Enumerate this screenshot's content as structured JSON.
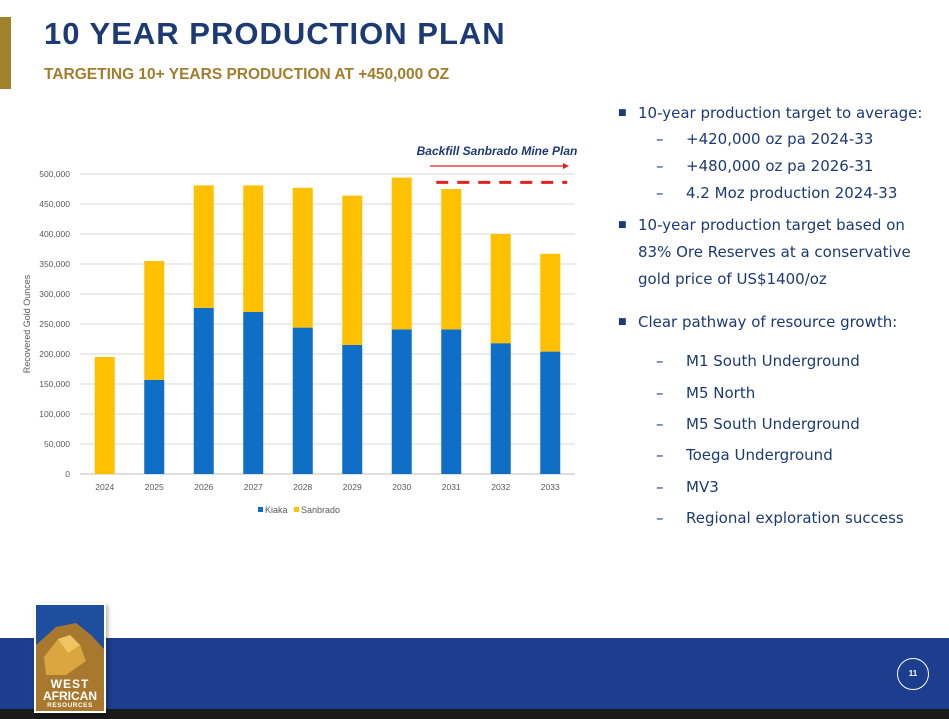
{
  "header": {
    "title": "10 YEAR PRODUCTION PLAN",
    "subtitle": "TARGETING 10+ YEARS PRODUCTION AT +450,000 OZ"
  },
  "colors": {
    "title": "#1c3a73",
    "subtitle": "#a37d2c",
    "accent_bar": "#a0822b",
    "kiaka": "#0f6fc6",
    "sanbrado": "#ffc000",
    "backfill_line": "#e32020",
    "footer": "#1d3d8e"
  },
  "chart_data": {
    "type": "bar",
    "stacked": true,
    "categories": [
      "2024",
      "2025",
      "2026",
      "2027",
      "2028",
      "2029",
      "2030",
      "2031",
      "2032",
      "2033"
    ],
    "series": [
      {
        "name": "Kiaka",
        "values": [
          0,
          157000,
          277000,
          270000,
          244000,
          215000,
          241000,
          241000,
          218000,
          204000
        ]
      },
      {
        "name": "Sanbrado",
        "values": [
          195000,
          198000,
          204000,
          211000,
          233000,
          249000,
          253000,
          234000,
          182000,
          163000
        ]
      }
    ],
    "ylabel": "Recovered Gold Ounces",
    "xlabel": "",
    "ylim": [
      0,
      500000
    ],
    "yticks": [
      0,
      50000,
      100000,
      150000,
      200000,
      250000,
      300000,
      350000,
      400000,
      450000,
      500000
    ],
    "ytick_labels": [
      "0",
      "50,000",
      "100,000",
      "150,000",
      "200,000",
      "250,000",
      "300,000",
      "350,000",
      "400,000",
      "450,000",
      "500,000"
    ],
    "legend_position": "bottom",
    "grid": true,
    "annotation": {
      "text": "Backfill Sanbrado Mine Plan",
      "value": 486000,
      "from_category": "2031",
      "to_category": "2033"
    }
  },
  "bullets": [
    {
      "text": "10-year production target to average:",
      "subs": [
        "+420,000 oz pa 2024-33",
        "+480,000 oz pa 2026-31",
        "4.2 Moz production 2024-33"
      ]
    },
    {
      "text": "10-year production target based on 83% Ore Reserves at a conservative gold price of US$1400/oz",
      "subs": []
    },
    {
      "text": "Clear pathway of resource growth:",
      "subs": [
        "M1 South Underground",
        "M5 North",
        "M5 South Underground",
        "Toega Underground",
        "MV3",
        "Regional exploration success"
      ]
    }
  ],
  "bullet_lines": {
    "b2_line1": "10-year production target based on",
    "b2_line2": "83% Ore Reserves at a conservative",
    "b2_line3": "gold price of US$1400/oz"
  },
  "footer": {
    "page_number": "11",
    "logo_line1": "WEST",
    "logo_line2": "AFRICAN",
    "logo_line3": "RESOURCES"
  }
}
